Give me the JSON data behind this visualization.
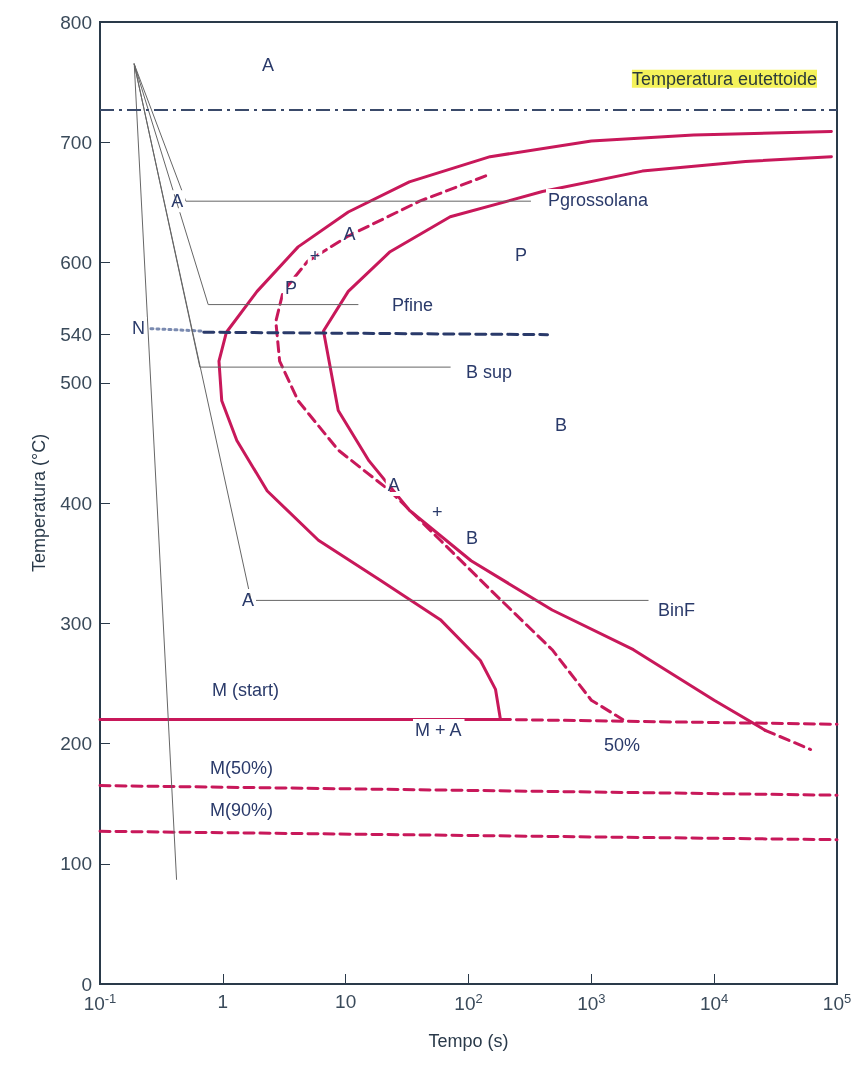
{
  "chart_data": {
    "type": "line",
    "xlabel": "Tempo (s)",
    "ylabel": "Temperatura (°C)",
    "log": "x",
    "grid": false,
    "marker": "none",
    "xlim": [
      0.1,
      100000
    ],
    "ylim": [
      0,
      800
    ],
    "xticks": [
      {
        "value": 0.1,
        "label": "10$^{-1}$"
      },
      1,
      10,
      {
        "value": 100,
        "label": "10$^{2}$"
      },
      {
        "value": 1000,
        "label": "10$^{3}$"
      },
      {
        "value": 10000,
        "label": "10$^{4}$"
      },
      {
        "value": 100000,
        "label": "10$^{5}$"
      }
    ],
    "yticks": [
      0,
      100,
      200,
      300,
      400,
      500,
      540,
      600,
      700,
      800
    ],
    "series": [
      {
        "color": "#c8185a",
        "line_style": "solid",
        "x": [
          90000,
          6800,
          1000,
          150,
          33,
          10.5,
          4.1,
          1.9,
          1.07,
          0.93,
          0.98,
          1.3,
          2.3,
          6,
          19,
          59,
          125,
          166,
          182
        ],
        "values": [
          709,
          706,
          701,
          688,
          667,
          642,
          613,
          576,
          542,
          518,
          485,
          452,
          410,
          369,
          336,
          303,
          269,
          245,
          220
        ]
      },
      {
        "color": "#c8185a",
        "line_style": "solid",
        "x": [
          90000,
          18000,
          2600,
          400,
          71,
          23,
          10.5,
          6.6,
          8.7,
          15.5,
          33,
          105,
          480,
          2200,
          10000,
          26000
        ],
        "values": [
          688,
          684,
          676,
          659,
          638,
          609,
          576,
          543,
          477,
          435,
          394,
          352,
          311,
          278,
          236,
          211
        ]
      },
      {
        "color": "#c8185a",
        "line_style": "dashed",
        "x": [
          26000,
          61000
        ],
        "values": [
          211,
          195
        ]
      },
      {
        "color": "#c8185a",
        "line_style": "dashed",
        "x": [
          138,
          40,
          10.5,
          4.9,
          3.1,
          2.7,
          2.9,
          4.1,
          8.7,
          23,
          59,
          150,
          480,
          1000,
          1800
        ],
        "values": [
          672,
          651,
          622,
          601,
          576,
          551,
          518,
          485,
          444,
          410,
          369,
          328,
          278,
          236,
          220
        ]
      },
      {
        "color": "#c8185a",
        "line_style": "solid",
        "x": [
          0.1,
          182
        ],
        "values": [
          220,
          220
        ]
      },
      {
        "color": "#c8185a",
        "line_style": "dashed",
        "x": [
          182,
          100000
        ],
        "values": [
          220,
          216
        ]
      },
      {
        "color": "#c8185a",
        "line_style": "dashed",
        "x": [
          0.1,
          100000
        ],
        "values": [
          165,
          157
        ]
      },
      {
        "color": "#c8185a",
        "line_style": "dashed",
        "x": [
          0.1,
          100000
        ],
        "values": [
          127,
          120
        ]
      },
      {
        "color": "#7a8ab0",
        "line_style": "dotted",
        "x": [
          0.26,
          0.68
        ],
        "values": [
          545,
          543
        ]
      },
      {
        "color": "#2a3a6a",
        "line_style": "dashed",
        "x": [
          0.7,
          440
        ],
        "values": [
          542,
          540
        ]
      },
      {
        "color": "#666666",
        "line_style": "solid",
        "x": [
          0.19,
          0.42
        ],
        "values": [
          765,
          87
        ]
      },
      {
        "color": "#666666",
        "line_style": "solid",
        "x": [
          0.19,
          0.5,
          320
        ],
        "values": [
          765,
          651,
          651
        ]
      },
      {
        "color": "#666666",
        "line_style": "solid",
        "x": [
          0.19,
          0.76,
          12.6
        ],
        "values": [
          765,
          565,
          565
        ]
      },
      {
        "color": "#666666",
        "line_style": "solid",
        "x": [
          0.19,
          0.65,
          71
        ],
        "values": [
          765,
          513,
          513
        ]
      },
      {
        "color": "#666666",
        "line_style": "solid",
        "x": [
          0.19,
          1.7,
          2900
        ],
        "values": [
          765,
          319,
          319
        ]
      }
    ],
    "ref_lines": [
      {
        "axis": "y",
        "value": 727,
        "label": "Temperatura eutettoide",
        "color": "#3a4a6a",
        "line_style": "dashdot"
      }
    ],
    "annotations": [
      "A",
      {
        "text": "A",
        "x": 0.38,
        "y": 651
      },
      "Pgrossolana",
      "P",
      "Pfine",
      "N",
      "B sup",
      "B",
      "A",
      "BinF",
      "M (start)",
      "M + A",
      "50%",
      "M(50%)",
      "M(90%)",
      {
        "text": "A",
        "x": 9.6,
        "y": 624
      },
      {
        "text": "P",
        "x": 3.2,
        "y": 579
      },
      {
        "text": "A",
        "x": 22,
        "y": 415
      },
      "B",
      {
        "text": "+",
        "x": 5.1,
        "y": 605
      },
      "+"
    ]
  }
}
